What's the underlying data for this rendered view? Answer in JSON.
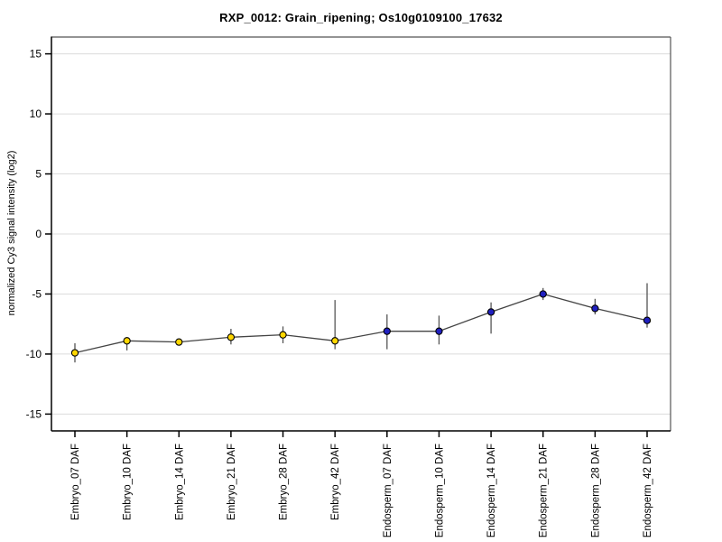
{
  "title": "RXP_0012: Grain_ripening; Os10g0109100_17632",
  "chart_data": {
    "type": "line",
    "title": "RXP_0012: Grain_ripening; Os10g0109100_17632",
    "xlabel": "",
    "ylabel": "normalized Cy3 signal intensity (log2)",
    "ylim": [
      -16.4,
      16.4
    ],
    "yticks": [
      15,
      10,
      5,
      0,
      -5,
      -10,
      -15
    ],
    "grid": true,
    "legend_position": "none",
    "categories": [
      "Embryo_07 DAF",
      "Embryo_10 DAF",
      "Embryo_14 DAF",
      "Embryo_21 DAF",
      "Embryo_28 DAF",
      "Embryo_42 DAF",
      "Endosperm_07 DAF",
      "Endosperm_10 DAF",
      "Endosperm_14 DAF",
      "Endosperm_21 DAF",
      "Endosperm_28 DAF",
      "Endosperm_42 DAF"
    ],
    "series": [
      {
        "name": "normalized Cy3 signal intensity (log2)",
        "values": [
          -9.9,
          -8.9,
          -9.0,
          -8.6,
          -8.4,
          -8.9,
          -8.1,
          -8.1,
          -6.5,
          -5.0,
          -6.2,
          -7.2
        ],
        "error_high": [
          -9.1,
          -8.6,
          -8.8,
          -7.9,
          -7.7,
          -5.5,
          -6.7,
          -6.8,
          -5.7,
          -4.5,
          -5.4,
          -4.1
        ],
        "error_low": [
          -10.7,
          -9.7,
          -9.2,
          -9.2,
          -9.1,
          -9.6,
          -9.6,
          -9.2,
          -8.3,
          -5.5,
          -6.7,
          -7.8
        ],
        "groups": [
          "embryo",
          "embryo",
          "embryo",
          "embryo",
          "embryo",
          "embryo",
          "endosperm",
          "endosperm",
          "endosperm",
          "endosperm",
          "endosperm",
          "endosperm"
        ]
      }
    ],
    "colors": {
      "embryo": "#ffd700",
      "endosperm": "#2020c0",
      "marker_stroke": "#000000",
      "line": "#444444",
      "error_bar": "#555555",
      "grid": "#dcdcdc",
      "axis": "#000000",
      "box": "#555555",
      "background": "#ffffff"
    }
  }
}
